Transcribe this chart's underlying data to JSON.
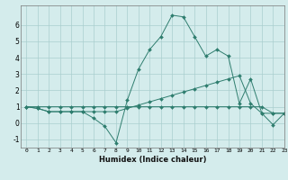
{
  "xlabel": "Humidex (Indice chaleur)",
  "xlim": [
    -0.5,
    23
  ],
  "ylim": [
    -1.5,
    7.2
  ],
  "yticks": [
    -1,
    0,
    1,
    2,
    3,
    4,
    5,
    6
  ],
  "xticks": [
    0,
    1,
    2,
    3,
    4,
    5,
    6,
    7,
    8,
    9,
    10,
    11,
    12,
    13,
    14,
    15,
    16,
    17,
    18,
    19,
    20,
    21,
    22,
    23
  ],
  "bg_color": "#d4ecec",
  "grid_color": "#aacece",
  "line_color": "#2e7d6e",
  "series": [
    [
      1.0,
      0.9,
      0.7,
      0.7,
      0.7,
      0.7,
      0.3,
      -0.2,
      -1.2,
      1.4,
      3.3,
      4.5,
      5.3,
      6.6,
      6.5,
      5.3,
      4.1,
      4.5,
      4.1,
      1.2,
      2.7,
      0.6,
      -0.1,
      0.6
    ],
    [
      1.0,
      0.9,
      0.7,
      0.7,
      0.7,
      0.7,
      0.7,
      0.7,
      0.7,
      0.9,
      1.1,
      1.3,
      1.5,
      1.7,
      1.9,
      2.1,
      2.3,
      2.5,
      2.7,
      2.9,
      1.2,
      0.6,
      0.6,
      0.6
    ],
    [
      1.0,
      1.0,
      1.0,
      1.0,
      1.0,
      1.0,
      1.0,
      1.0,
      1.0,
      1.0,
      1.0,
      1.0,
      1.0,
      1.0,
      1.0,
      1.0,
      1.0,
      1.0,
      1.0,
      1.0,
      1.0,
      1.0,
      0.6,
      0.6
    ]
  ]
}
